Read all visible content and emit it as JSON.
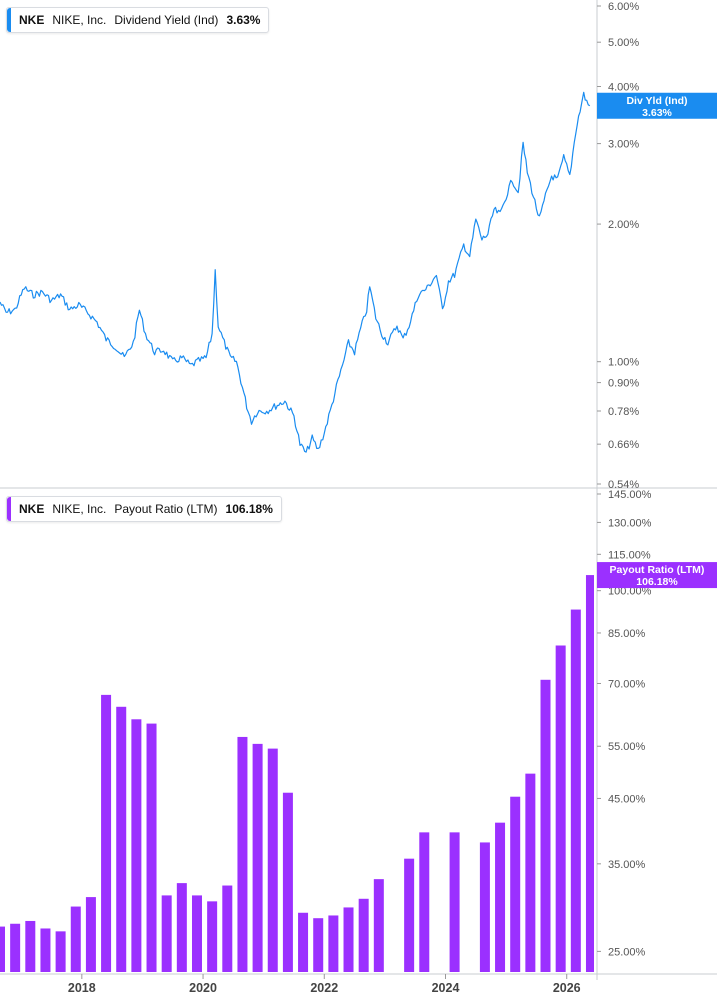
{
  "colors": {
    "yield": "#1a8cf0",
    "payout": "#9b30ff",
    "axis": "#c9ccd1",
    "text": "#555555"
  },
  "top_legend": {
    "ticker": "NKE",
    "company": "NIKE, Inc.",
    "metric": "Dividend Yield (Ind)",
    "value": "3.63%"
  },
  "bottom_legend": {
    "ticker": "NKE",
    "company": "NIKE, Inc.",
    "metric": "Payout Ratio (LTM)",
    "value": "106.18%"
  },
  "top_badge": {
    "line1": "Div Yld (Ind)",
    "line2": "3.63%"
  },
  "bottom_badge": {
    "line1": "Payout Ratio (LTM)",
    "line2": "106.18%"
  },
  "chart_data": [
    {
      "type": "line",
      "title": "Dividend Yield (Ind)",
      "series": [
        {
          "name": "Dividend Yield (Ind)"
        }
      ],
      "yscale": "log",
      "ylim": [
        0.54,
        6.0
      ],
      "xlim": [
        2016.65,
        2026.45
      ],
      "y_ticks": [
        6.0,
        5.0,
        4.0,
        3.0,
        2.0,
        1.0,
        0.9,
        0.78,
        0.66,
        0.54
      ],
      "y_tick_labels": [
        "6.00%",
        "5.00%",
        "4.00%",
        "3.00%",
        "2.00%",
        "1.00%",
        "0.90%",
        "0.78%",
        "0.66%",
        "0.54%"
      ],
      "points": [
        [
          2016.65,
          1.35
        ],
        [
          2016.75,
          1.28
        ],
        [
          2016.9,
          1.3
        ],
        [
          2017.05,
          1.45
        ],
        [
          2017.2,
          1.4
        ],
        [
          2017.35,
          1.42
        ],
        [
          2017.5,
          1.36
        ],
        [
          2017.65,
          1.4
        ],
        [
          2017.8,
          1.3
        ],
        [
          2017.95,
          1.33
        ],
        [
          2018.1,
          1.28
        ],
        [
          2018.25,
          1.22
        ],
        [
          2018.4,
          1.12
        ],
        [
          2018.55,
          1.08
        ],
        [
          2018.7,
          1.02
        ],
        [
          2018.85,
          1.1
        ],
        [
          2018.95,
          1.3
        ],
        [
          2019.05,
          1.15
        ],
        [
          2019.2,
          1.05
        ],
        [
          2019.35,
          1.06
        ],
        [
          2019.5,
          1.0
        ],
        [
          2019.65,
          1.02
        ],
        [
          2019.8,
          0.98
        ],
        [
          2019.9,
          1.0
        ],
        [
          2020.05,
          1.02
        ],
        [
          2020.15,
          1.15
        ],
        [
          2020.2,
          1.58
        ],
        [
          2020.25,
          1.2
        ],
        [
          2020.35,
          1.1
        ],
        [
          2020.45,
          1.02
        ],
        [
          2020.55,
          1.0
        ],
        [
          2020.65,
          0.88
        ],
        [
          2020.72,
          0.8
        ],
        [
          2020.8,
          0.74
        ],
        [
          2020.9,
          0.78
        ],
        [
          2021.05,
          0.78
        ],
        [
          2021.2,
          0.8
        ],
        [
          2021.35,
          0.82
        ],
        [
          2021.5,
          0.76
        ],
        [
          2021.6,
          0.66
        ],
        [
          2021.7,
          0.63
        ],
        [
          2021.8,
          0.68
        ],
        [
          2021.9,
          0.64
        ],
        [
          2022.0,
          0.7
        ],
        [
          2022.1,
          0.78
        ],
        [
          2022.2,
          0.88
        ],
        [
          2022.3,
          0.98
        ],
        [
          2022.4,
          1.1
        ],
        [
          2022.5,
          1.05
        ],
        [
          2022.6,
          1.18
        ],
        [
          2022.7,
          1.3
        ],
        [
          2022.75,
          1.46
        ],
        [
          2022.85,
          1.25
        ],
        [
          2022.95,
          1.15
        ],
        [
          2023.05,
          1.1
        ],
        [
          2023.2,
          1.2
        ],
        [
          2023.3,
          1.12
        ],
        [
          2023.4,
          1.2
        ],
        [
          2023.55,
          1.4
        ],
        [
          2023.7,
          1.45
        ],
        [
          2023.85,
          1.55
        ],
        [
          2023.95,
          1.3
        ],
        [
          2024.05,
          1.5
        ],
        [
          2024.15,
          1.55
        ],
        [
          2024.3,
          1.8
        ],
        [
          2024.4,
          1.7
        ],
        [
          2024.5,
          2.05
        ],
        [
          2024.6,
          1.85
        ],
        [
          2024.7,
          1.9
        ],
        [
          2024.8,
          2.15
        ],
        [
          2024.9,
          2.1
        ],
        [
          2025.0,
          2.3
        ],
        [
          2025.1,
          2.5
        ],
        [
          2025.2,
          2.35
        ],
        [
          2025.28,
          3.0
        ],
        [
          2025.35,
          2.6
        ],
        [
          2025.45,
          2.3
        ],
        [
          2025.55,
          2.05
        ],
        [
          2025.65,
          2.3
        ],
        [
          2025.75,
          2.55
        ],
        [
          2025.85,
          2.5
        ],
        [
          2025.95,
          2.8
        ],
        [
          2026.05,
          2.55
        ],
        [
          2026.15,
          3.2
        ],
        [
          2026.22,
          3.55
        ],
        [
          2026.28,
          3.85
        ],
        [
          2026.33,
          3.7
        ],
        [
          2026.38,
          3.63
        ]
      ],
      "end_value": 3.63
    },
    {
      "type": "bar",
      "title": "Payout Ratio (LTM)",
      "series": [
        {
          "name": "Payout Ratio (LTM)"
        }
      ],
      "yscale": "log",
      "ylim": [
        24.0,
        145.0
      ],
      "xlim": [
        2016.65,
        2026.45
      ],
      "x_ticks": [
        2018,
        2020,
        2022,
        2024,
        2026
      ],
      "x_tick_labels": [
        "2018",
        "2020",
        "2022",
        "2024",
        "2026"
      ],
      "y_ticks": [
        145,
        130,
        115,
        100,
        85,
        70,
        55,
        45,
        35,
        25
      ],
      "y_tick_labels": [
        "145.00%",
        "130.00%",
        "115.00%",
        "100.00%",
        "85.00%",
        "70.00%",
        "55.00%",
        "45.00%",
        "35.00%",
        "25.00%"
      ],
      "bars": [
        [
          2016.65,
          27.5
        ],
        [
          2016.9,
          27.8
        ],
        [
          2017.15,
          28.1
        ],
        [
          2017.4,
          27.3
        ],
        [
          2017.65,
          27.0
        ],
        [
          2017.9,
          29.7
        ],
        [
          2018.15,
          30.8
        ],
        [
          2018.4,
          67.0
        ],
        [
          2018.65,
          64.0
        ],
        [
          2018.9,
          61.0
        ],
        [
          2019.15,
          60.0
        ],
        [
          2019.4,
          31.0
        ],
        [
          2019.65,
          32.5
        ],
        [
          2019.9,
          31.0
        ],
        [
          2020.15,
          30.3
        ],
        [
          2020.4,
          32.2
        ],
        [
          2020.65,
          57.0
        ],
        [
          2020.9,
          55.5
        ],
        [
          2021.15,
          54.5
        ],
        [
          2021.4,
          46.0
        ],
        [
          2021.65,
          29.0
        ],
        [
          2021.9,
          28.4
        ],
        [
          2022.15,
          28.7
        ],
        [
          2022.4,
          29.6
        ],
        [
          2022.65,
          30.6
        ],
        [
          2022.9,
          33.0
        ],
        [
          2023.4,
          35.7
        ],
        [
          2023.65,
          39.5
        ],
        [
          2024.15,
          39.5
        ],
        [
          2024.65,
          38.0
        ],
        [
          2024.9,
          41.0
        ],
        [
          2025.15,
          45.3
        ],
        [
          2025.4,
          49.5
        ],
        [
          2025.65,
          71.0
        ],
        [
          2025.9,
          81.0
        ],
        [
          2026.15,
          93.0
        ],
        [
          2026.4,
          106.18
        ]
      ],
      "end_value": 106.18
    }
  ]
}
